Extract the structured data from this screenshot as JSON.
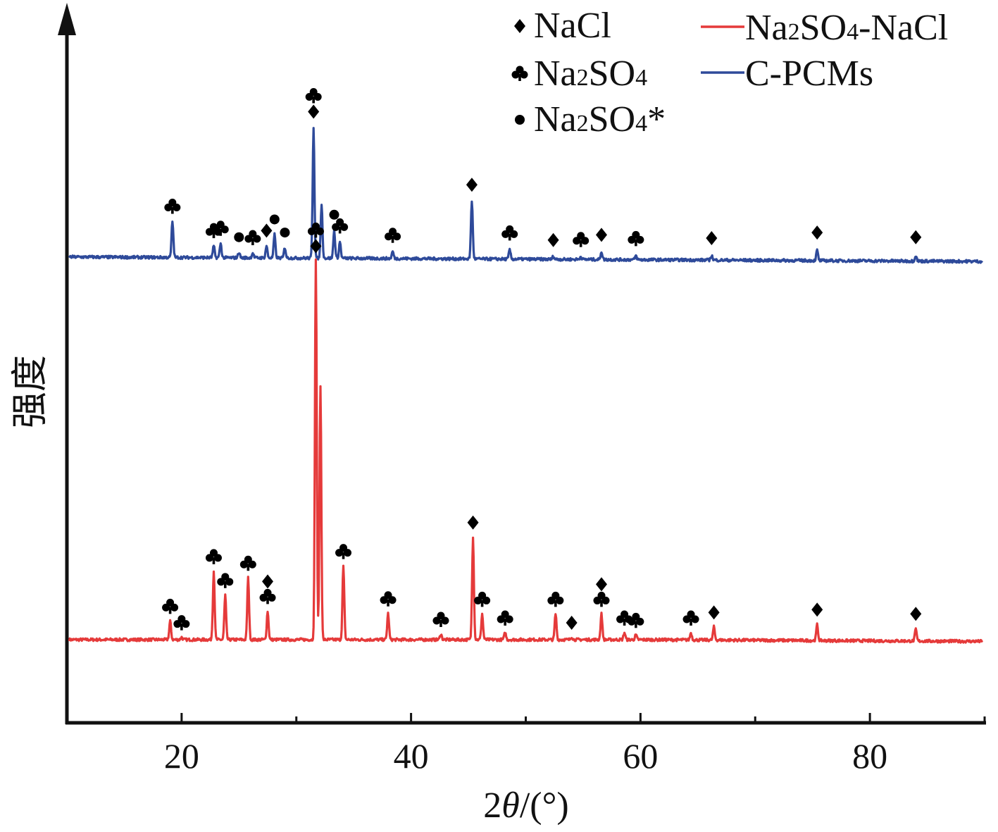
{
  "chart_data": {
    "type": "line",
    "title": "",
    "xlabel": "2θ/(°)",
    "xlabel_prefix": "2",
    "xlabel_theta": "θ",
    "xlabel_suffix": "/(°)",
    "ylabel": "强度",
    "xlim": [
      10,
      90
    ],
    "xticks": [
      20,
      40,
      60,
      80
    ],
    "y_ticks_shown": false,
    "legend_position": "top-right",
    "legend": {
      "markers": [
        {
          "symbol": "diamond",
          "text": "NaCl",
          "main": "NaCl",
          "sub": "",
          "tail": ""
        },
        {
          "symbol": "club",
          "text": "Na2SO4",
          "main": "Na",
          "sub": "2",
          "tail": "SO",
          "sub2": "4",
          "tail2": ""
        },
        {
          "symbol": "dot",
          "text": "Na2SO4*",
          "main": "Na",
          "sub": "2",
          "tail": "SO",
          "sub2": "4",
          "tail2": "*"
        }
      ],
      "lines": [
        {
          "series_index": 0,
          "main": "Na",
          "sub": "2",
          "tail": "SO",
          "sub2": "4",
          "tail2": "-NaCl"
        },
        {
          "series_index": 1,
          "main": "C-PCMs",
          "sub": "",
          "tail": "",
          "sub2": "",
          "tail2": ""
        }
      ]
    },
    "series": [
      {
        "name": "Na2SO4-NaCl",
        "color": "#e53a3a",
        "baseline": 0,
        "peaks": [
          {
            "x": 19.0,
            "h": 0.04,
            "m": [
              "club"
            ]
          },
          {
            "x": 20.0,
            "h": 0.005,
            "m": [
              "club"
            ]
          },
          {
            "x": 22.8,
            "h": 0.146,
            "m": [
              "club"
            ]
          },
          {
            "x": 23.8,
            "h": 0.095,
            "m": [
              "club"
            ]
          },
          {
            "x": 25.8,
            "h": 0.132,
            "m": [
              "club"
            ]
          },
          {
            "x": 27.5,
            "h": 0.061,
            "m": [
              "club",
              "diamond"
            ]
          },
          {
            "x": 31.7,
            "h": 0.81,
            "m": [
              "diamond",
              "club"
            ]
          },
          {
            "x": 32.1,
            "h": 0.54,
            "m": []
          },
          {
            "x": 34.1,
            "h": 0.157,
            "m": [
              "club"
            ]
          },
          {
            "x": 38.0,
            "h": 0.056,
            "m": [
              "club"
            ]
          },
          {
            "x": 42.6,
            "h": 0.012,
            "m": [
              "club"
            ]
          },
          {
            "x": 45.4,
            "h": 0.22,
            "m": [
              "diamond"
            ]
          },
          {
            "x": 46.2,
            "h": 0.055,
            "m": [
              "club"
            ]
          },
          {
            "x": 48.2,
            "h": 0.015,
            "m": [
              "club"
            ]
          },
          {
            "x": 52.6,
            "h": 0.055,
            "m": [
              "club"
            ]
          },
          {
            "x": 54.0,
            "h": 0.006,
            "m": [
              "diamond"
            ]
          },
          {
            "x": 56.6,
            "h": 0.055,
            "m": [
              "club",
              "diamond"
            ]
          },
          {
            "x": 58.6,
            "h": 0.015,
            "m": [
              "club"
            ]
          },
          {
            "x": 59.6,
            "h": 0.01,
            "m": [
              "club"
            ]
          },
          {
            "x": 64.4,
            "h": 0.015,
            "m": [
              "club"
            ]
          },
          {
            "x": 66.4,
            "h": 0.028,
            "m": [
              "diamond"
            ]
          },
          {
            "x": 75.4,
            "h": 0.034,
            "m": [
              "diamond"
            ]
          },
          {
            "x": 84.0,
            "h": 0.025,
            "m": [
              "diamond"
            ]
          }
        ]
      },
      {
        "name": "C-PCMs",
        "color": "#2e4a9a",
        "baseline": 0.817,
        "peaks": [
          {
            "x": 19.2,
            "h": 0.077,
            "m": [
              "club"
            ]
          },
          {
            "x": 22.8,
            "h": 0.025,
            "m": [
              "club"
            ]
          },
          {
            "x": 23.4,
            "h": 0.03,
            "m": [
              "club"
            ]
          },
          {
            "x": 25.0,
            "h": 0.012,
            "m": [
              "dot"
            ]
          },
          {
            "x": 26.2,
            "h": 0.01,
            "m": [
              "club"
            ]
          },
          {
            "x": 27.4,
            "h": 0.026,
            "m": [
              "diamond"
            ]
          },
          {
            "x": 28.1,
            "h": 0.05,
            "m": [
              "dot"
            ]
          },
          {
            "x": 29.0,
            "h": 0.022,
            "m": [
              "dot"
            ]
          },
          {
            "x": 31.5,
            "h": 0.28,
            "m": [
              "diamond",
              "club"
            ]
          },
          {
            "x": 32.2,
            "h": 0.115,
            "m": []
          },
          {
            "x": 33.3,
            "h": 0.06,
            "m": [
              "dot"
            ]
          },
          {
            "x": 33.8,
            "h": 0.035,
            "m": [
              "club"
            ]
          },
          {
            "x": 38.4,
            "h": 0.015,
            "m": [
              "club"
            ]
          },
          {
            "x": 45.3,
            "h": 0.124,
            "m": [
              "diamond"
            ]
          },
          {
            "x": 48.6,
            "h": 0.02,
            "m": [
              "club"
            ]
          },
          {
            "x": 52.4,
            "h": 0.006,
            "m": [
              "diamond"
            ]
          },
          {
            "x": 54.8,
            "h": 0.006,
            "m": [
              "club"
            ]
          },
          {
            "x": 56.6,
            "h": 0.017,
            "m": [
              "diamond"
            ]
          },
          {
            "x": 59.6,
            "h": 0.008,
            "m": [
              "club"
            ]
          },
          {
            "x": 66.2,
            "h": 0.01,
            "m": [
              "diamond"
            ]
          },
          {
            "x": 75.4,
            "h": 0.022,
            "m": [
              "diamond"
            ]
          },
          {
            "x": 84.0,
            "h": 0.012,
            "m": [
              "diamond"
            ]
          }
        ]
      }
    ]
  }
}
